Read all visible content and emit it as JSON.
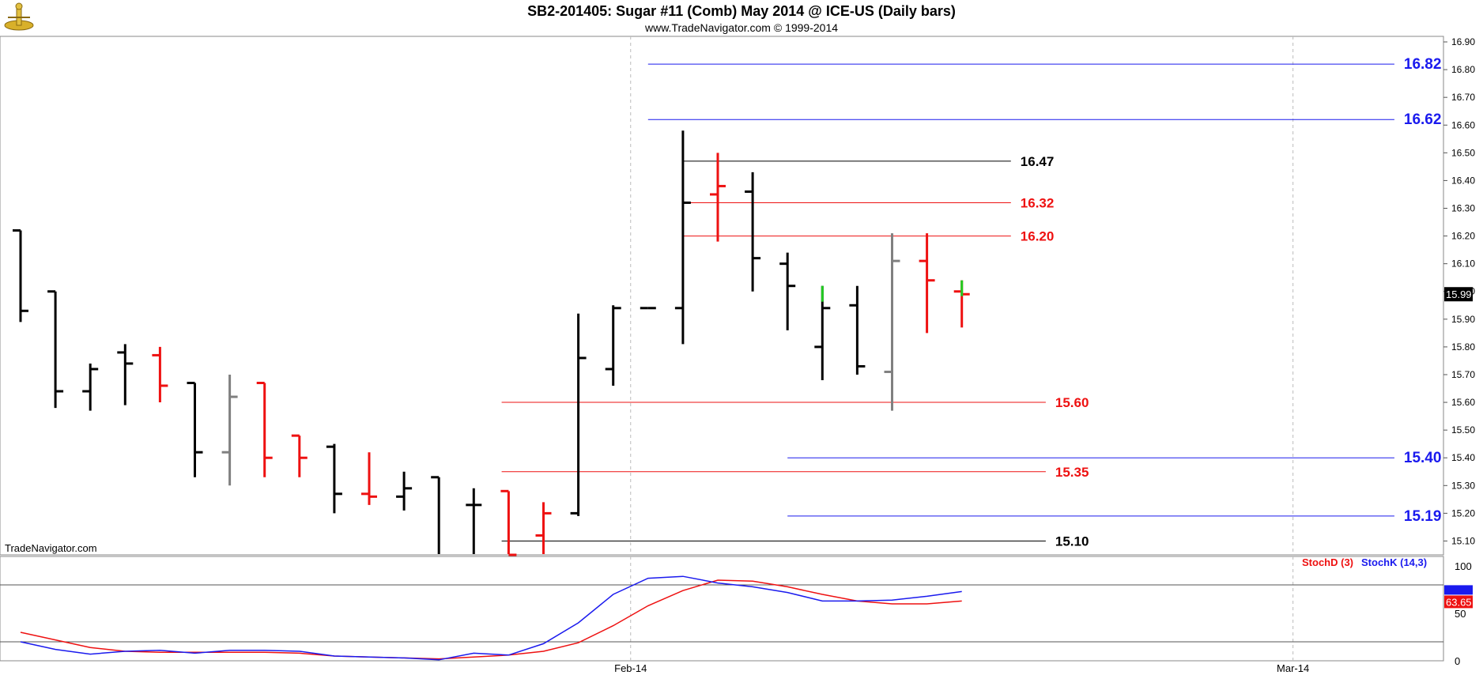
{
  "title": "SB2-201405:  Sugar #11 (Comb) May 2014 @ ICE-US  (Daily bars)",
  "subtitle": "www.TradeNavigator.com © 1999-2014",
  "watermark": "TradeNavigator.com",
  "colors": {
    "up_bar": "#000000",
    "down_bar": "#ee1111",
    "neutral_bar": "#808080",
    "stoch_d": "#ee1111",
    "stoch_k": "#1a1aee",
    "level_blue": "#1a1aee",
    "level_red": "#ee1111",
    "level_black": "#000000"
  },
  "chart_data": [
    {
      "type": "ohlc",
      "ylim": [
        15.05,
        16.92
      ],
      "y_ticks": [
        "16.90",
        "16.80",
        "16.70",
        "16.60",
        "16.50",
        "16.40",
        "16.30",
        "16.20",
        "16.10",
        "16.00",
        "15.90",
        "15.80",
        "15.70",
        "15.60",
        "15.50",
        "15.40",
        "15.30",
        "15.20",
        "15.10"
      ],
      "x_ticks": [
        {
          "label": "Feb-14",
          "bar": 17.5
        },
        {
          "label": "Mar-14",
          "bar": 36.5
        }
      ],
      "last_price_label": "15.99",
      "bars": [
        {
          "open": 16.22,
          "high": 16.22,
          "low": 15.89,
          "close": 15.93,
          "color": "black"
        },
        {
          "open": 16.0,
          "high": 16.0,
          "low": 15.58,
          "close": 15.64,
          "color": "black"
        },
        {
          "open": 15.64,
          "high": 15.74,
          "low": 15.57,
          "close": 15.72,
          "color": "black"
        },
        {
          "open": 15.78,
          "high": 15.81,
          "low": 15.59,
          "close": 15.74,
          "color": "black"
        },
        {
          "open": 15.77,
          "high": 15.8,
          "low": 15.6,
          "close": 15.66,
          "color": "red"
        },
        {
          "open": 15.67,
          "high": 15.67,
          "low": 15.33,
          "close": 15.42,
          "color": "black"
        },
        {
          "open": 15.42,
          "high": 15.7,
          "low": 15.3,
          "close": 15.62,
          "color": "gray"
        },
        {
          "open": 15.67,
          "high": 15.67,
          "low": 15.33,
          "close": 15.4,
          "color": "red"
        },
        {
          "open": 15.48,
          "high": 15.48,
          "low": 15.33,
          "close": 15.4,
          "color": "red"
        },
        {
          "open": 15.44,
          "high": 15.45,
          "low": 15.2,
          "close": 15.27,
          "color": "black"
        },
        {
          "open": 15.27,
          "high": 15.42,
          "low": 15.23,
          "close": 15.26,
          "color": "red"
        },
        {
          "open": 15.26,
          "high": 15.35,
          "low": 15.21,
          "close": 15.29,
          "color": "black"
        },
        {
          "open": 15.33,
          "high": 15.33,
          "low": 15.02,
          "close": 15.04,
          "color": "black"
        },
        {
          "open": 15.23,
          "high": 15.29,
          "low": 15.02,
          "close": 15.23,
          "color": "black"
        },
        {
          "open": 15.28,
          "high": 15.28,
          "low": 15.02,
          "close": 15.05,
          "color": "red"
        },
        {
          "open": 15.12,
          "high": 15.24,
          "low": 15.02,
          "close": 15.2,
          "color": "red"
        },
        {
          "open": 15.2,
          "high": 15.92,
          "low": 15.19,
          "close": 15.76,
          "color": "black"
        },
        {
          "open": 15.72,
          "high": 15.95,
          "low": 15.66,
          "close": 15.94,
          "color": "black"
        },
        {
          "open": 15.94,
          "high": 15.94,
          "low": 15.94,
          "close": 15.94,
          "color": "black"
        },
        {
          "open": 15.94,
          "high": 16.58,
          "low": 15.81,
          "close": 16.32,
          "color": "black"
        },
        {
          "open": 16.35,
          "high": 16.5,
          "low": 16.18,
          "close": 16.38,
          "color": "red"
        },
        {
          "open": 16.36,
          "high": 16.43,
          "low": 16.0,
          "close": 16.12,
          "color": "black"
        },
        {
          "open": 16.1,
          "high": 16.14,
          "low": 15.86,
          "close": 16.02,
          "color": "black"
        },
        {
          "open": 15.8,
          "high": 16.02,
          "low": 15.68,
          "close": 15.94,
          "color": "black",
          "accent": "green"
        },
        {
          "open": 15.95,
          "high": 16.02,
          "low": 15.7,
          "close": 15.73,
          "color": "black"
        },
        {
          "open": 15.71,
          "high": 16.21,
          "low": 15.57,
          "close": 16.11,
          "color": "gray"
        },
        {
          "open": 16.11,
          "high": 16.21,
          "low": 15.85,
          "close": 16.04,
          "color": "red"
        },
        {
          "open": 16.0,
          "high": 16.04,
          "low": 15.87,
          "close": 15.99,
          "color": "red",
          "accent": "green"
        }
      ],
      "levels": [
        {
          "value": 16.82,
          "label": "16.82",
          "color": "blue",
          "from_bar": 18,
          "to_bar": 39
        },
        {
          "value": 16.62,
          "label": "16.62",
          "color": "blue",
          "from_bar": 18,
          "to_bar": 39
        },
        {
          "value": 16.47,
          "label": "16.47",
          "color": "black",
          "from_bar": 19,
          "to_bar": 28
        },
        {
          "value": 16.32,
          "label": "16.32",
          "color": "red",
          "from_bar": 19,
          "to_bar": 28
        },
        {
          "value": 16.2,
          "label": "16.20",
          "color": "red",
          "from_bar": 19,
          "to_bar": 28
        },
        {
          "value": 15.6,
          "label": "15.60",
          "color": "red",
          "from_bar": 13.8,
          "to_bar": 29
        },
        {
          "value": 15.4,
          "label": "15.40",
          "color": "blue",
          "from_bar": 22,
          "to_bar": 39
        },
        {
          "value": 15.35,
          "label": "15.35",
          "color": "red",
          "from_bar": 13.8,
          "to_bar": 29
        },
        {
          "value": 15.19,
          "label": "15.19",
          "color": "blue",
          "from_bar": 22,
          "to_bar": 39
        },
        {
          "value": 15.1,
          "label": "15.10",
          "color": "black",
          "from_bar": 13.8,
          "to_bar": 29
        }
      ]
    },
    {
      "type": "line",
      "ylim": [
        0,
        110
      ],
      "y_ticks": [
        "100",
        "50",
        "0"
      ],
      "reference_lines": [
        80,
        20
      ],
      "legend": [
        {
          "label": "StochD (3)",
          "color": "red"
        },
        {
          "label": "StochK (14,3)",
          "color": "blue"
        }
      ],
      "last_value_label": "63.65",
      "series": [
        {
          "name": "StochD (3)",
          "color": "red",
          "values": [
            30,
            22,
            14,
            10,
            9,
            9,
            9,
            9,
            8,
            5,
            4,
            3,
            2,
            4,
            6,
            10,
            19,
            37,
            58,
            74,
            85,
            84,
            78,
            70,
            63,
            60,
            60,
            63
          ]
        },
        {
          "name": "StochK (14,3)",
          "color": "blue",
          "values": [
            20,
            12,
            7,
            10,
            11,
            8,
            11,
            11,
            10,
            5,
            4,
            3,
            1,
            8,
            6,
            18,
            40,
            70,
            87,
            89,
            82,
            78,
            72,
            63,
            63,
            64,
            68,
            73
          ]
        }
      ]
    }
  ]
}
